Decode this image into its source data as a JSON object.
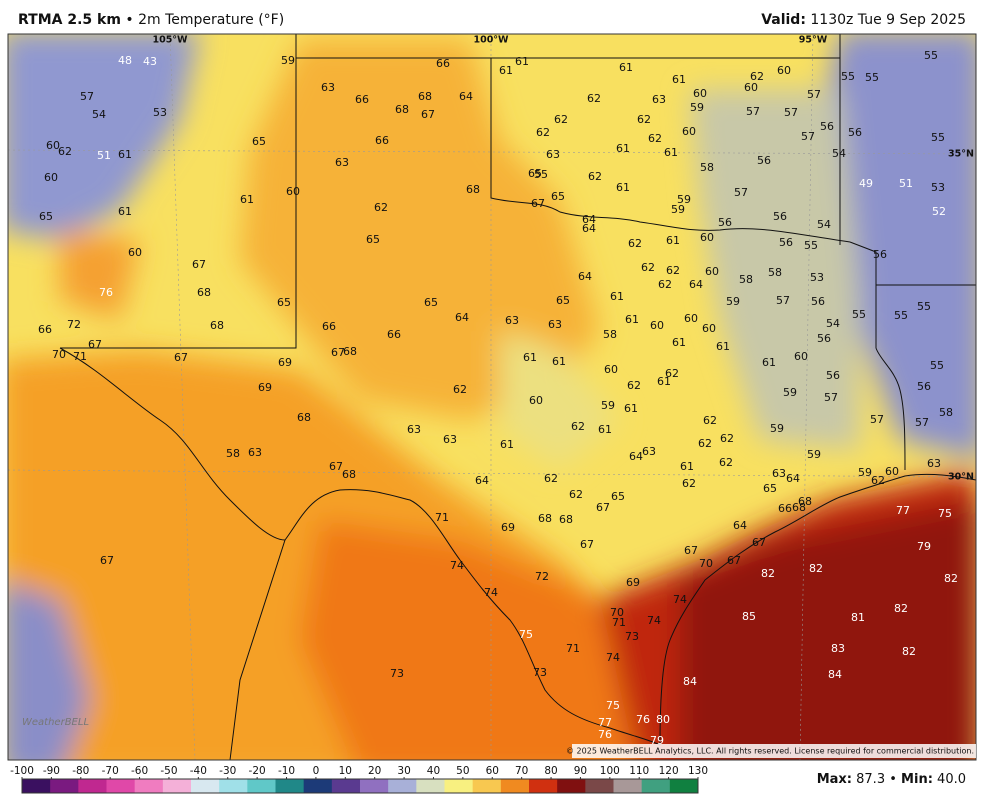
{
  "header": {
    "title": "RTMA 2.5 km",
    "separator": "•",
    "subtitle": "2m Temperature (°F)",
    "valid_label": "Valid:",
    "valid": "1130z Tue 9 Sep 2025"
  },
  "graticule": {
    "lon": [
      "105°W",
      "100°W",
      "95°W"
    ],
    "lat": [
      "35°N",
      "30°N"
    ]
  },
  "stations": [
    48,
    43,
    59,
    66,
    61,
    61,
    61,
    62,
    60,
    55,
    55,
    55,
    57,
    54,
    53,
    63,
    66,
    68,
    64,
    68,
    67,
    62,
    63,
    61,
    60,
    59,
    60,
    57,
    57,
    57,
    56,
    56,
    55,
    60,
    62,
    51,
    61,
    65,
    66,
    62,
    62,
    62,
    62,
    60,
    63,
    61,
    61,
    57,
    54,
    60,
    63,
    65,
    55,
    62,
    58,
    56,
    49,
    51,
    53,
    65,
    61,
    61,
    60,
    68,
    65,
    67,
    61,
    59,
    59,
    57,
    52,
    62,
    64,
    64,
    56,
    56,
    54,
    60,
    61,
    62,
    65,
    56,
    55,
    56,
    60,
    67,
    62,
    62,
    60,
    64,
    58,
    58,
    53,
    62,
    64,
    76,
    68,
    65,
    65,
    65,
    61,
    59,
    57,
    56,
    55,
    55,
    55,
    66,
    72,
    68,
    64,
    63,
    63,
    61,
    60,
    60,
    60,
    58,
    54,
    56,
    66,
    66,
    70,
    67,
    71,
    67,
    69,
    67,
    68,
    61,
    61,
    61,
    61,
    60,
    61,
    55,
    60,
    62,
    61,
    62,
    56,
    56,
    69,
    62,
    59,
    57,
    60,
    59,
    61,
    58,
    57,
    57,
    68,
    63,
    63,
    61,
    62,
    61,
    62,
    59,
    62,
    62,
    64,
    63,
    59,
    63,
    58,
    63,
    67,
    68,
    61,
    62,
    63,
    64,
    59,
    60,
    62,
    64,
    62,
    65,
    62,
    62,
    65,
    67,
    68,
    66,
    68,
    71,
    69,
    68,
    68,
    64,
    77,
    75,
    67,
    67,
    67,
    67,
    70,
    67,
    79,
    74,
    72,
    82,
    82,
    82,
    69,
    74,
    70,
    71,
    74,
    74,
    85,
    81,
    82,
    75,
    73,
    71,
    74,
    83,
    82,
    73,
    73,
    84,
    84,
    75,
    77,
    76,
    80,
    76,
    79
  ],
  "logo": "WeatherBELL",
  "copyright": "© 2025 WeatherBELL Analytics, LLC. All rights reserved. License required for commercial distribution.",
  "colorbar": {
    "ticks": [
      -100,
      -90,
      -80,
      -70,
      -60,
      -50,
      -40,
      -30,
      -20,
      -10,
      0,
      10,
      20,
      30,
      40,
      50,
      60,
      70,
      80,
      90,
      100,
      110,
      120,
      130
    ],
    "colors": [
      "#3a1060",
      "#7a1a80",
      "#c02890",
      "#e048a8",
      "#f07cc0",
      "#f4b0d8",
      "#d8e8f0",
      "#a0e0e8",
      "#60c8c8",
      "#208888",
      "#1c3a78",
      "#5a3a90",
      "#9070c0",
      "#a8b0d8",
      "#d8e0c0",
      "#f8f080",
      "#f8c850",
      "#f08a20",
      "#d03010",
      "#801010",
      "#7a4848",
      "#a89898",
      "#40a080",
      "#108040"
    ]
  },
  "stats": {
    "max_label": "Max:",
    "max": "87.3",
    "separator": "•",
    "min_label": "Min:",
    "min": "40.0"
  }
}
